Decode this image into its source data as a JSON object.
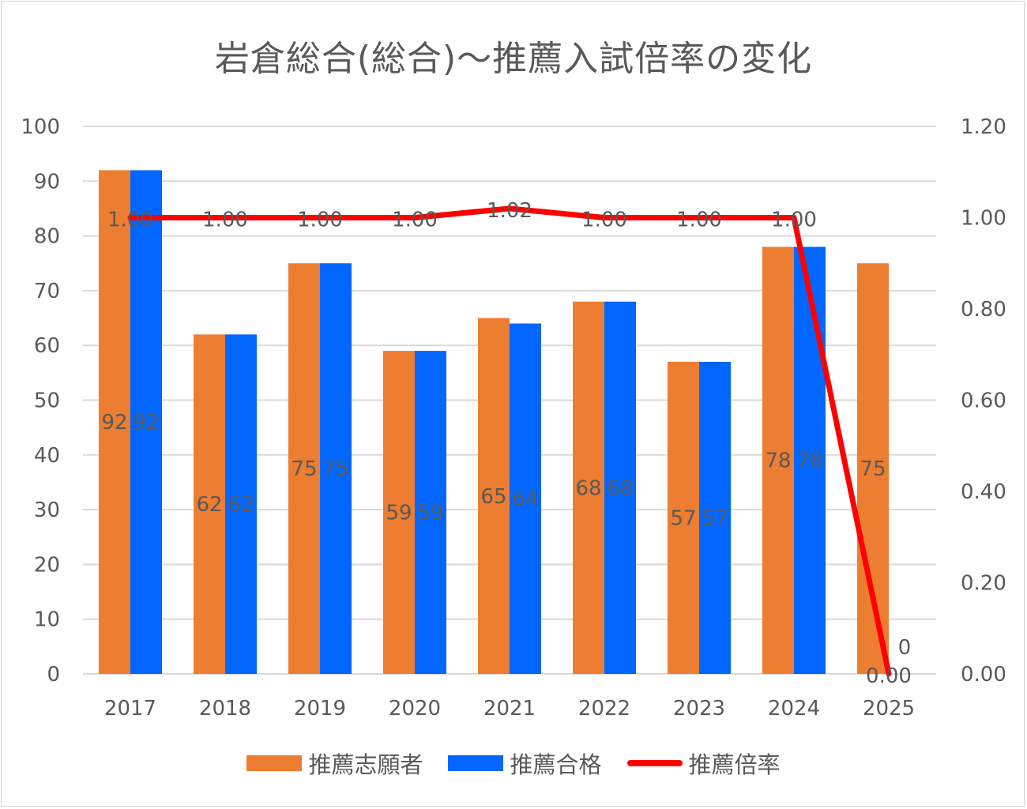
{
  "chart_data": {
    "type": "bar",
    "title": "岩倉総合(総合)～推薦入試倍率の変化",
    "categories": [
      "2017",
      "2018",
      "2019",
      "2020",
      "2021",
      "2022",
      "2023",
      "2024",
      "2025"
    ],
    "series": [
      {
        "name": "推薦志願者",
        "type": "bar",
        "axis": "left",
        "color": "#ED7D31",
        "values": [
          92,
          62,
          75,
          59,
          65,
          68,
          57,
          78,
          75
        ],
        "labels": [
          "92",
          "62",
          "75",
          "59",
          "65",
          "68",
          "57",
          "78",
          "75"
        ]
      },
      {
        "name": "推薦合格",
        "type": "bar",
        "axis": "left",
        "color": "#0066FF",
        "values": [
          92,
          62,
          75,
          59,
          64,
          68,
          57,
          78,
          0
        ],
        "labels": [
          "92",
          "62",
          "75",
          "59",
          "64",
          "68",
          "57",
          "78",
          "0"
        ]
      },
      {
        "name": "推薦倍率",
        "type": "line",
        "axis": "right",
        "color": "#FF0000",
        "values": [
          1.0,
          1.0,
          1.0,
          1.0,
          1.02,
          1.0,
          1.0,
          1.0,
          0.0
        ],
        "labels": [
          "1.00",
          "1.00",
          "1.00",
          "1.00",
          "1.02",
          "1.00",
          "1.00",
          "1.00",
          "0.00"
        ]
      }
    ],
    "y_left": {
      "min": 0,
      "max": 100,
      "step": 10,
      "ticks": [
        "0",
        "10",
        "20",
        "30",
        "40",
        "50",
        "60",
        "70",
        "80",
        "90",
        "100"
      ]
    },
    "y_right": {
      "min": 0,
      "max": 1.2,
      "step": 0.2,
      "ticks": [
        "0.00",
        "0.20",
        "0.40",
        "0.60",
        "0.80",
        "1.00",
        "1.20"
      ]
    },
    "grid": true,
    "legend_position": "bottom"
  }
}
